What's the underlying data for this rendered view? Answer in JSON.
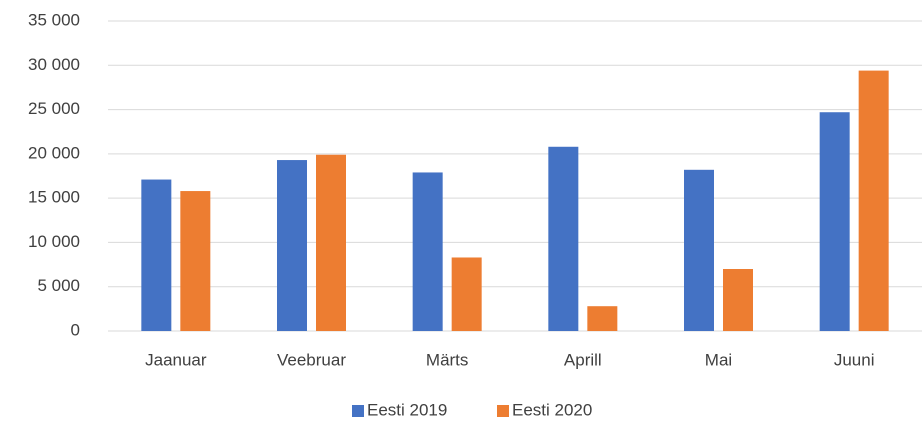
{
  "chart_data": {
    "type": "bar",
    "categories": [
      "Jaanuar",
      "Veebruar",
      "Märts",
      "Aprill",
      "Mai",
      "Juuni"
    ],
    "series": [
      {
        "name": "Eesti 2019",
        "color": "#4472c4",
        "values": [
          17100,
          19300,
          17900,
          20800,
          18200,
          24700
        ]
      },
      {
        "name": "Eesti 2020",
        "color": "#ed7d31",
        "values": [
          15800,
          19900,
          8300,
          2800,
          7000,
          29400
        ]
      }
    ],
    "ylim": [
      0,
      35000
    ],
    "yticks": [
      0,
      {
        "value": 5000,
        "label": "5 000"
      },
      {
        "value": 10000,
        "label": "10 000"
      },
      {
        "value": 15000,
        "label": "15 000"
      },
      {
        "value": 20000,
        "label": "20 000"
      },
      {
        "value": 25000,
        "label": "25 000"
      },
      {
        "value": 30000,
        "label": "30 000"
      },
      {
        "value": 35000,
        "label": "35 000"
      }
    ],
    "grid": true,
    "legend": "bottom"
  }
}
